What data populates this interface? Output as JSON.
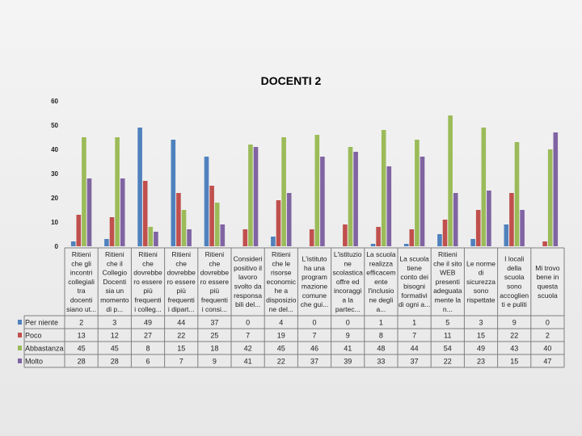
{
  "chart_data": {
    "type": "bar",
    "title": "DOCENTI 2",
    "ylim": [
      0,
      60
    ],
    "yticks": [
      0,
      10,
      20,
      30,
      40,
      50,
      60
    ],
    "grid": false,
    "legend_placement": "left of data table",
    "categories": [
      [
        "Ritieni",
        "che gli",
        "incontri",
        "collegiali",
        "tra",
        "docenti",
        "siano ut..."
      ],
      [
        "Ritieni",
        "che il",
        "Collegio",
        "Docenti",
        "sia un",
        "momento",
        "di p..."
      ],
      [
        "Ritieni",
        "che",
        "dovrebbe",
        "ro essere",
        "più",
        "frequenti",
        "i colleg..."
      ],
      [
        "Ritieni",
        "che",
        "dovrebbe",
        "ro essere",
        "più",
        "frequenti",
        "i dipart..."
      ],
      [
        "Ritieni",
        "che",
        "dovrebbe",
        "ro essere",
        "più",
        "frequenti",
        "i consi..."
      ],
      [
        "Consideri",
        "positivo il",
        "lavoro",
        "svolto da",
        "responsa",
        "bili del..."
      ],
      [
        "Ritieni",
        "che le",
        "risorse",
        "economic",
        "he a",
        "disposizio",
        "ne del..."
      ],
      [
        "L'istituto",
        "ha una",
        "program",
        "mazione",
        "comune",
        "che gui..."
      ],
      [
        "L'istituzio",
        "ne",
        "scolastica",
        "offre ed",
        "incoraggi",
        "a la",
        "partec..."
      ],
      [
        "La scuola",
        "realizza",
        "efficacem",
        "ente",
        "l'inclusio",
        "ne degli",
        "a..."
      ],
      [
        "La scuola",
        "tiene",
        "conto dei",
        "bisogni",
        "formativi",
        "di ogni a..."
      ],
      [
        "Ritieni",
        "che il sito",
        "WEB",
        "presenti",
        "adeguata",
        "mente la",
        "n..."
      ],
      [
        "Le norme",
        "di",
        "sicurezza",
        "sono",
        "rispettate"
      ],
      [
        "I locali",
        "della",
        "scuola",
        "sono",
        "accoglien",
        "ti e puliti"
      ],
      [
        "Mi trovo",
        "bene in",
        "questa",
        "scuola"
      ]
    ],
    "series": [
      {
        "name": "Per niente",
        "color": "#4F81BD",
        "values": [
          2,
          3,
          49,
          44,
          37,
          0,
          4,
          0,
          0,
          1,
          1,
          5,
          3,
          9,
          0
        ]
      },
      {
        "name": "Poco",
        "color": "#C0504D",
        "values": [
          13,
          12,
          27,
          22,
          25,
          7,
          19,
          7,
          9,
          8,
          7,
          11,
          15,
          22,
          2
        ]
      },
      {
        "name": "Abbastanza",
        "color": "#9BBB59",
        "values": [
          45,
          45,
          8,
          15,
          18,
          42,
          45,
          46,
          41,
          48,
          44,
          54,
          49,
          43,
          40
        ]
      },
      {
        "name": "Molto",
        "color": "#8064A2",
        "values": [
          28,
          28,
          6,
          7,
          9,
          41,
          22,
          37,
          39,
          33,
          37,
          22,
          23,
          15,
          47
        ]
      }
    ]
  }
}
